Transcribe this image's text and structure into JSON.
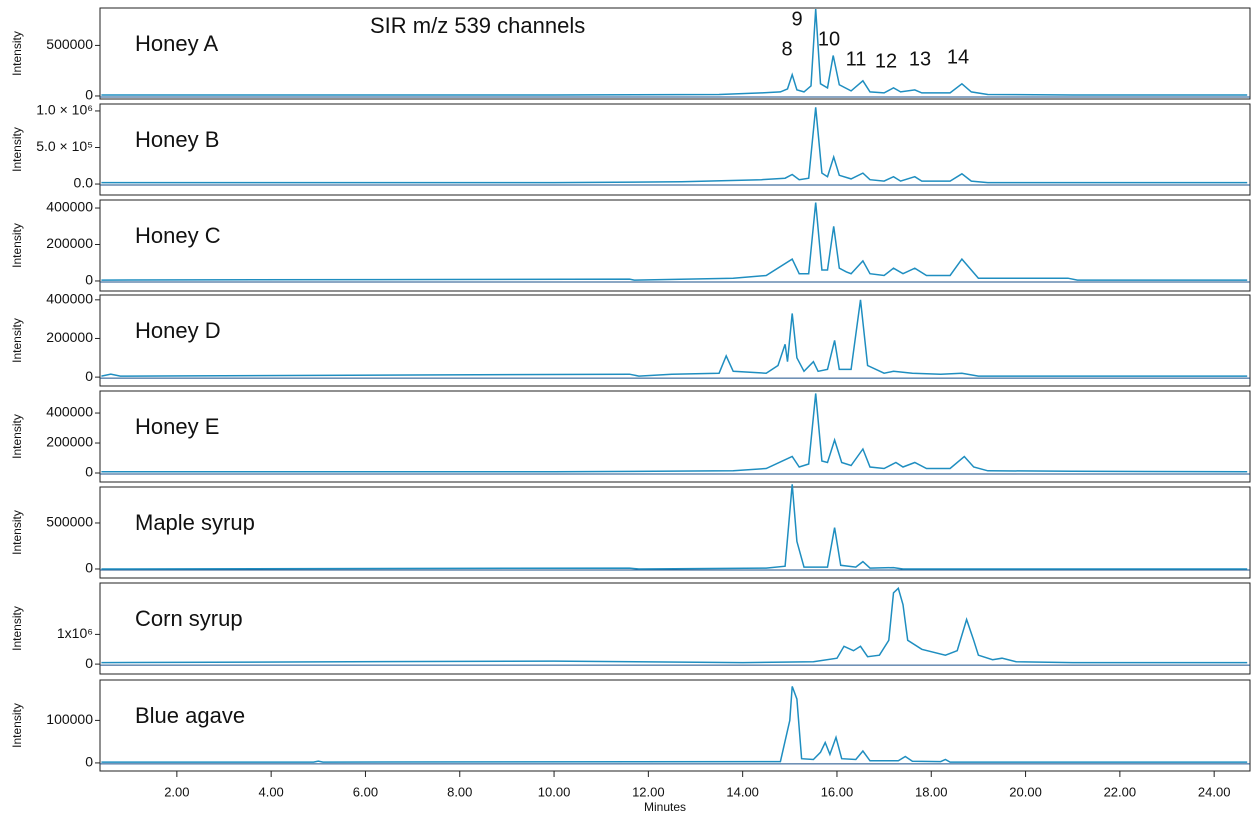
{
  "chart_data": [
    {
      "type": "line",
      "title": "Honey A",
      "ylabel": "Intensity",
      "color": "#1f8ec0",
      "annotation": "SIR m/z 539 channels",
      "peak_labels": [
        "8",
        "9",
        "10",
        "11",
        "12",
        "13",
        "14"
      ],
      "xlim": [
        0.37,
        24.76
      ],
      "ylim": [
        -30000,
        870000
      ],
      "yticks": [
        0,
        500000
      ],
      "x": [
        0.4,
        10,
        13.5,
        14.4,
        14.8,
        14.95,
        15.05,
        15.15,
        15.3,
        15.45,
        15.55,
        15.65,
        15.8,
        15.92,
        16.05,
        16.3,
        16.55,
        16.7,
        17.0,
        17.2,
        17.35,
        17.65,
        17.8,
        18.4,
        18.65,
        18.85,
        19.2,
        21,
        24.7
      ],
      "values": [
        10000,
        10000,
        15000,
        30000,
        40000,
        70000,
        210000,
        60000,
        40000,
        100000,
        860000,
        120000,
        80000,
        400000,
        110000,
        50000,
        150000,
        40000,
        30000,
        80000,
        40000,
        60000,
        30000,
        30000,
        120000,
        40000,
        15000,
        10000,
        10000
      ]
    },
    {
      "type": "line",
      "title": "Honey B",
      "ylabel": "Intensity",
      "color": "#1f8ec0",
      "xlim": [
        0.37,
        24.76
      ],
      "ylim": [
        -150000,
        1095000
      ],
      "yticks": [
        {
          "value": 0,
          "label": "0.0"
        },
        {
          "value": 500000,
          "label": "5.0 × 10⁵"
        },
        {
          "value": 1000000,
          "label": "1.0 × 10⁶"
        }
      ],
      "x": [
        0.4,
        10,
        12.7,
        14.4,
        14.9,
        15.05,
        15.2,
        15.4,
        15.55,
        15.68,
        15.8,
        15.93,
        16.05,
        16.3,
        16.55,
        16.7,
        17.0,
        17.2,
        17.35,
        17.65,
        17.8,
        18.4,
        18.65,
        18.85,
        19.2,
        24.7
      ],
      "values": [
        20000,
        20000,
        30000,
        60000,
        80000,
        130000,
        60000,
        80000,
        1050000,
        150000,
        100000,
        370000,
        120000,
        70000,
        150000,
        60000,
        40000,
        100000,
        40000,
        100000,
        40000,
        40000,
        140000,
        40000,
        20000,
        20000
      ]
    },
    {
      "type": "line",
      "title": "Honey C",
      "ylabel": "Intensity",
      "color": "#1f8ec0",
      "xlim": [
        0.37,
        24.76
      ],
      "ylim": [
        -55000,
        444000
      ],
      "yticks": [
        0,
        200000,
        400000
      ],
      "x": [
        0.4,
        11.6,
        11.7,
        13.8,
        14.5,
        15.05,
        15.2,
        15.4,
        15.55,
        15.68,
        15.8,
        15.93,
        16.05,
        16.2,
        16.3,
        16.55,
        16.7,
        17.0,
        17.2,
        17.4,
        17.65,
        17.9,
        18.4,
        18.65,
        18.85,
        19.0,
        20.9,
        21.1,
        24.7
      ],
      "values": [
        5000,
        10000,
        5000,
        15000,
        30000,
        120000,
        40000,
        40000,
        430000,
        60000,
        60000,
        300000,
        70000,
        50000,
        40000,
        110000,
        40000,
        30000,
        70000,
        40000,
        70000,
        30000,
        30000,
        120000,
        60000,
        15000,
        15000,
        5000,
        5000
      ]
    },
    {
      "type": "line",
      "title": "Honey D",
      "ylabel": "Intensity",
      "color": "#1f8ec0",
      "xlim": [
        0.37,
        24.76
      ],
      "ylim": [
        -46000,
        425000
      ],
      "yticks": [
        0,
        200000,
        400000
      ],
      "x": [
        0.4,
        0.6,
        0.8,
        11.6,
        11.8,
        12.5,
        13.5,
        13.65,
        13.8,
        14.5,
        14.75,
        14.9,
        14.95,
        15.05,
        15.15,
        15.3,
        15.5,
        15.6,
        15.8,
        15.95,
        16.05,
        16.3,
        16.5,
        16.65,
        17.0,
        17.2,
        17.6,
        18.2,
        18.65,
        19,
        24.7
      ],
      "values": [
        5000,
        15000,
        5000,
        15000,
        5000,
        15000,
        20000,
        110000,
        30000,
        20000,
        60000,
        170000,
        80000,
        330000,
        100000,
        30000,
        80000,
        30000,
        40000,
        190000,
        40000,
        40000,
        400000,
        60000,
        20000,
        30000,
        20000,
        15000,
        20000,
        5000,
        5000
      ]
    },
    {
      "type": "line",
      "title": "Honey E",
      "ylabel": "Intensity",
      "color": "#1f8ec0",
      "xlim": [
        0.37,
        24.76
      ],
      "ylim": [
        -60000,
        547000
      ],
      "yticks": [
        0,
        200000,
        400000
      ],
      "x": [
        0.4,
        10,
        13.8,
        14.5,
        15.05,
        15.2,
        15.4,
        15.55,
        15.68,
        15.8,
        15.95,
        16.1,
        16.3,
        16.55,
        16.7,
        17.0,
        17.25,
        17.4,
        17.65,
        17.9,
        18.4,
        18.7,
        18.9,
        19.2,
        21,
        24.7
      ],
      "values": [
        8000,
        8000,
        15000,
        30000,
        110000,
        40000,
        60000,
        530000,
        80000,
        70000,
        220000,
        70000,
        50000,
        160000,
        40000,
        30000,
        70000,
        40000,
        70000,
        30000,
        30000,
        110000,
        40000,
        15000,
        12000,
        8000
      ]
    },
    {
      "type": "line",
      "title": "Maple syrup",
      "ylabel": "Intensity",
      "color": "#1f8ec0",
      "xlim": [
        0.37,
        24.76
      ],
      "ylim": [
        -98000,
        891000
      ],
      "yticks": [
        0,
        500000
      ],
      "x": [
        0.4,
        11.6,
        11.8,
        14.5,
        14.9,
        15.05,
        15.15,
        15.3,
        15.8,
        15.95,
        16.08,
        16.4,
        16.55,
        16.7,
        17.2,
        17.4,
        24.7
      ],
      "values": [
        0,
        10000,
        0,
        10000,
        30000,
        920000,
        300000,
        20000,
        20000,
        450000,
        40000,
        20000,
        80000,
        10000,
        15000,
        0,
        0
      ]
    },
    {
      "type": "line",
      "title": "Corn syrup",
      "ylabel": "Intensity",
      "color": "#1f8ec0",
      "xlim": [
        0.37,
        24.76
      ],
      "ylim": [
        -333000,
        2730000
      ],
      "yticks": [
        0,
        {
          "value": 1000000,
          "label": "1x10⁶"
        }
      ],
      "x": [
        0.4,
        10,
        14,
        15.5,
        16.0,
        16.15,
        16.35,
        16.5,
        16.65,
        16.9,
        17.1,
        17.2,
        17.3,
        17.4,
        17.5,
        17.8,
        18.3,
        18.55,
        18.75,
        18.9,
        19.0,
        19.3,
        19.5,
        19.8,
        21,
        24.7
      ],
      "values": [
        50000,
        100000,
        50000,
        80000,
        200000,
        600000,
        450000,
        600000,
        250000,
        300000,
        800000,
        2400000,
        2550000,
        2000000,
        800000,
        500000,
        300000,
        450000,
        1500000,
        800000,
        300000,
        150000,
        200000,
        80000,
        50000,
        50000
      ]
    },
    {
      "type": "line",
      "title": "Blue agave",
      "ylabel": "Intensity",
      "xlabel": "Minutes",
      "color": "#1f8ec0",
      "xlim": [
        0.37,
        24.76
      ],
      "ylim": [
        -19000,
        195000
      ],
      "yticks": [
        0,
        100000
      ],
      "xticks": [
        {
          "value": 2,
          "label": "2.00"
        },
        {
          "value": 4,
          "label": "4.00"
        },
        {
          "value": 6,
          "label": "6.00"
        },
        {
          "value": 8,
          "label": "8.00"
        },
        {
          "value": 10,
          "label": "10.00"
        },
        {
          "value": 12,
          "label": "12.00"
        },
        {
          "value": 14,
          "label": "14.00"
        },
        {
          "value": 16,
          "label": "16.00"
        },
        {
          "value": 18,
          "label": "18.00"
        },
        {
          "value": 20,
          "label": "20.00"
        },
        {
          "value": 22,
          "label": "22.00"
        },
        {
          "value": 24,
          "label": "24.00"
        }
      ],
      "x": [
        0.4,
        4.9,
        5.0,
        5.1,
        14.8,
        15.0,
        15.05,
        15.15,
        15.25,
        15.5,
        15.65,
        15.75,
        15.85,
        15.98,
        16.1,
        16.4,
        16.55,
        16.7,
        17.3,
        17.45,
        17.6,
        18.2,
        18.3,
        18.4,
        24.7
      ],
      "values": [
        2000,
        2000,
        4000,
        2000,
        3000,
        100000,
        180000,
        150000,
        10000,
        8000,
        25000,
        48000,
        20000,
        60000,
        10000,
        8000,
        28000,
        5000,
        5000,
        15000,
        4000,
        3000,
        8000,
        2000,
        2000
      ]
    }
  ]
}
